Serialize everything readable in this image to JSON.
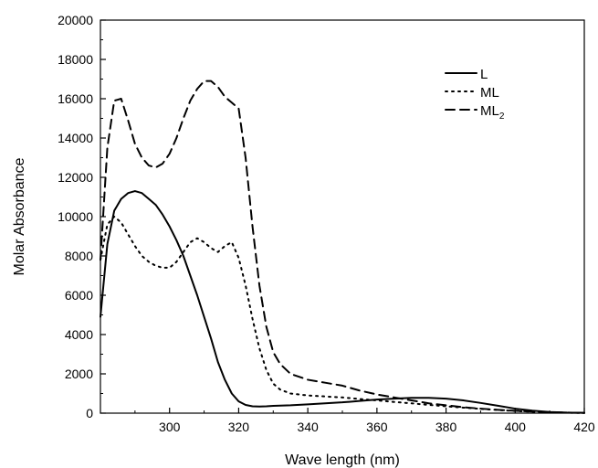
{
  "chart_data": {
    "type": "line",
    "title": "",
    "xlabel": "Wave length (nm)",
    "ylabel": "Molar Absorbance",
    "xlim": [
      280,
      420
    ],
    "ylim": [
      0,
      20000
    ],
    "x_ticks": [
      300,
      320,
      340,
      360,
      380,
      400,
      420
    ],
    "x_tick_labels": [
      "300",
      "320",
      "340",
      "360",
      "380",
      "400",
      "420"
    ],
    "y_ticks": [
      0,
      2000,
      4000,
      6000,
      8000,
      10000,
      12000,
      14000,
      16000,
      18000,
      20000
    ],
    "y_tick_labels": [
      "0",
      "2000",
      "4000",
      "6000",
      "8000",
      "10000",
      "12000",
      "14000",
      "16000",
      "18000",
      "20000"
    ],
    "grid": false,
    "legend_position": "top-right",
    "series": [
      {
        "name": "L",
        "line_style": "solid",
        "color": "#000000",
        "x": [
          280,
          282,
          284,
          286,
          288,
          290,
          292,
          294,
          296,
          298,
          300,
          302,
          304,
          306,
          308,
          310,
          312,
          314,
          316,
          318,
          320,
          322,
          324,
          326,
          328,
          330,
          335,
          340,
          345,
          350,
          355,
          360,
          365,
          370,
          375,
          380,
          385,
          390,
          395,
          400,
          405,
          410,
          415,
          420
        ],
        "y": [
          4900,
          8600,
          10300,
          10900,
          11200,
          11300,
          11200,
          10900,
          10600,
          10100,
          9500,
          8800,
          8000,
          7000,
          6000,
          4900,
          3800,
          2600,
          1700,
          1000,
          600,
          420,
          350,
          340,
          350,
          370,
          400,
          450,
          500,
          550,
          620,
          690,
          740,
          780,
          780,
          740,
          650,
          520,
          380,
          230,
          130,
          60,
          30,
          20
        ]
      },
      {
        "name": "ML",
        "line_style": "dotted",
        "color": "#000000",
        "x": [
          280,
          282,
          284,
          286,
          288,
          290,
          292,
          294,
          296,
          298,
          300,
          302,
          304,
          306,
          308,
          310,
          312,
          314,
          316,
          318,
          320,
          322,
          324,
          326,
          328,
          330,
          332,
          335,
          340,
          345,
          350,
          355,
          360,
          365,
          370,
          375,
          380,
          385,
          390,
          395,
          400,
          405,
          410,
          415,
          420
        ],
        "y": [
          7800,
          9600,
          10000,
          9700,
          9100,
          8500,
          8000,
          7700,
          7500,
          7400,
          7400,
          7700,
          8200,
          8700,
          8900,
          8700,
          8400,
          8200,
          8500,
          8700,
          7900,
          6500,
          4800,
          3300,
          2200,
          1500,
          1200,
          1000,
          900,
          850,
          800,
          720,
          650,
          570,
          500,
          420,
          350,
          280,
          220,
          160,
          110,
          70,
          40,
          20,
          10
        ]
      },
      {
        "name": "ML",
        "name_subscript": "2",
        "line_style": "dashed",
        "color": "#000000",
        "x": [
          280,
          282,
          284,
          286,
          288,
          290,
          292,
          294,
          296,
          298,
          300,
          302,
          304,
          306,
          308,
          310,
          312,
          314,
          316,
          318,
          320,
          322,
          324,
          326,
          328,
          330,
          332,
          335,
          340,
          345,
          350,
          355,
          360,
          365,
          370,
          375,
          380,
          385,
          390,
          395,
          400,
          405,
          410,
          415,
          420
        ],
        "y": [
          7800,
          13500,
          15900,
          16000,
          14900,
          13700,
          13000,
          12600,
          12500,
          12700,
          13200,
          14000,
          15000,
          15900,
          16500,
          16900,
          16900,
          16600,
          16100,
          15800,
          15500,
          13000,
          9500,
          6500,
          4400,
          3100,
          2500,
          2000,
          1700,
          1550,
          1400,
          1150,
          950,
          800,
          650,
          500,
          400,
          300,
          230,
          170,
          120,
          80,
          50,
          30,
          10
        ]
      }
    ]
  }
}
